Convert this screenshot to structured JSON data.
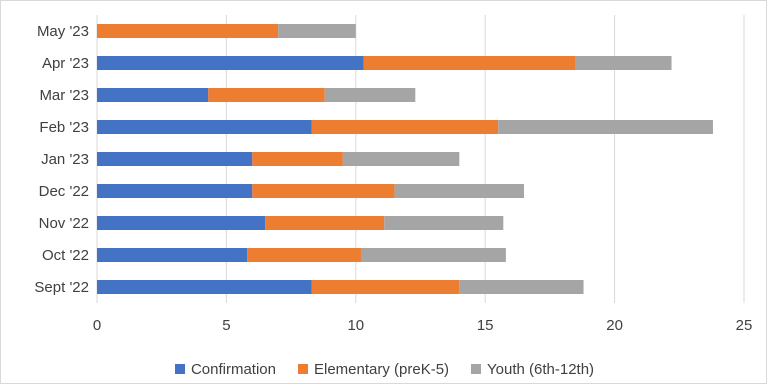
{
  "chart_data": {
    "type": "bar",
    "orientation": "horizontal",
    "stacked": true,
    "title": "",
    "xlabel": "",
    "ylabel": "",
    "categories": [
      "Sept '22",
      "Oct '22",
      "Nov '22",
      "Dec '22",
      "Jan '23",
      "Feb '23",
      "Mar '23",
      "Apr '23",
      "May '23"
    ],
    "series": [
      {
        "name": "Confirmation",
        "color": "#4472c4",
        "values": [
          8.3,
          5.8,
          6.5,
          6.0,
          6.0,
          8.3,
          4.3,
          10.3,
          0
        ]
      },
      {
        "name": "Elementary (preK-5)",
        "color": "#ed7d31",
        "values": [
          5.7,
          4.4,
          4.6,
          5.5,
          3.5,
          7.2,
          4.5,
          8.2,
          7.0
        ]
      },
      {
        "name": "Youth (6th-12th)",
        "color": "#a5a5a5",
        "values": [
          4.8,
          5.6,
          4.6,
          5.0,
          4.5,
          8.3,
          3.5,
          3.7,
          3.0
        ]
      }
    ],
    "xlim": [
      0,
      25
    ],
    "xticks": [
      "0",
      "5",
      "10",
      "15",
      "20",
      "25"
    ],
    "grid": "vertical",
    "legend": "bottom"
  }
}
